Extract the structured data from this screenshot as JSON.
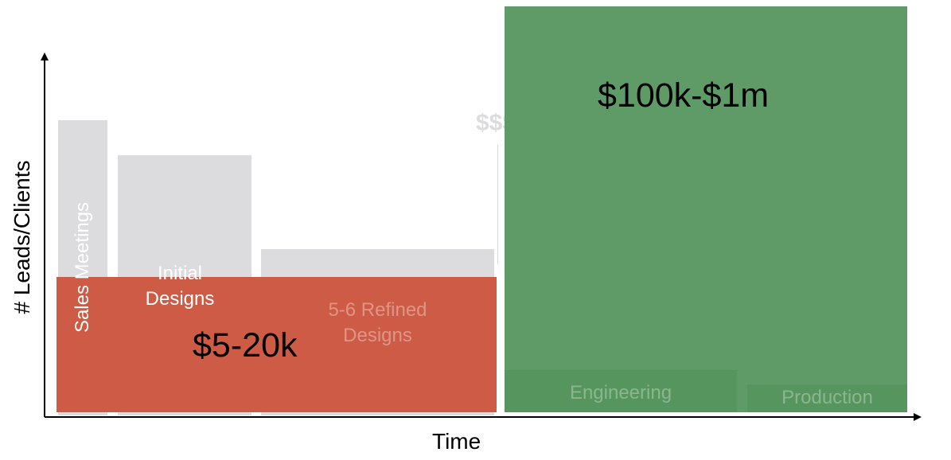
{
  "axes": {
    "x_label": "Time",
    "y_label": "# Leads/Clients"
  },
  "phases": [
    {
      "label": "Sales Meetings"
    },
    {
      "label": "Initial\nDesigns"
    },
    {
      "label": "5-6 Refined\nDesigns"
    },
    {
      "label": "Engineering"
    },
    {
      "label": "Production"
    }
  ],
  "price_bands": [
    {
      "label": "$5-20k",
      "color": "#cd5b45"
    },
    {
      "label": "$100k-$1m",
      "color": "#4f9458"
    }
  ],
  "marker": {
    "label": "$$$"
  },
  "colors": {
    "phase_box": "#dcdcdf",
    "phase_text": "#ffffff"
  }
}
